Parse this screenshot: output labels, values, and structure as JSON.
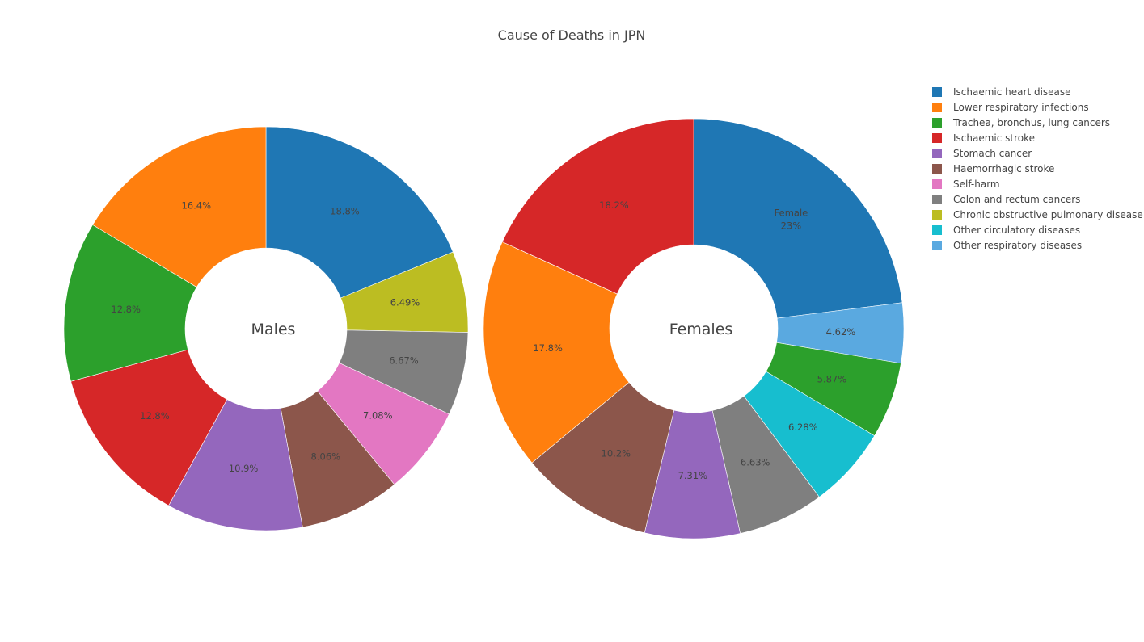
{
  "chart_data": {
    "type": "pie",
    "title": "Cause of Deaths in JPN",
    "legend_position": "top-right",
    "legend": [
      {
        "name": "Ischaemic heart disease",
        "color": "#1f77b4"
      },
      {
        "name": "Lower respiratory infections",
        "color": "#ff7f0e"
      },
      {
        "name": "Trachea, bronchus, lung cancers",
        "color": "#2ca02c"
      },
      {
        "name": "Ischaemic stroke",
        "color": "#d62728"
      },
      {
        "name": "Stomach cancer",
        "color": "#9467bd"
      },
      {
        "name": "Haemorrhagic stroke",
        "color": "#8c564b"
      },
      {
        "name": "Self-harm",
        "color": "#e377c2"
      },
      {
        "name": "Colon and rectum cancers",
        "color": "#7f7f7f"
      },
      {
        "name": "Chronic obstructive pulmonary disease",
        "color": "#bcbd22"
      },
      {
        "name": "Other circulatory diseases",
        "color": "#17becf"
      },
      {
        "name": "Other respiratory diseases",
        "color": "#5aa9e0"
      }
    ],
    "pies": [
      {
        "center_label": "Males",
        "slices": [
          {
            "name": "Ischaemic heart disease",
            "value": 18.8,
            "label": "18.8%"
          },
          {
            "name": "Chronic obstructive pulmonary disease",
            "value": 6.49,
            "label": "6.49%"
          },
          {
            "name": "Colon and rectum cancers",
            "value": 6.67,
            "label": "6.67%"
          },
          {
            "name": "Self-harm",
            "value": 7.08,
            "label": "7.08%"
          },
          {
            "name": "Haemorrhagic stroke",
            "value": 8.06,
            "label": "8.06%"
          },
          {
            "name": "Stomach cancer",
            "value": 10.9,
            "label": "10.9%"
          },
          {
            "name": "Ischaemic stroke",
            "value": 12.8,
            "label": "12.8%"
          },
          {
            "name": "Trachea, bronchus, lung cancers",
            "value": 12.8,
            "label": "12.8%"
          },
          {
            "name": "Lower respiratory infections",
            "value": 16.4,
            "label": "16.4%"
          }
        ]
      },
      {
        "center_label": "Females",
        "slices": [
          {
            "name": "Ischaemic heart disease",
            "value": 23,
            "label": "23%",
            "sublabel": "Female"
          },
          {
            "name": "Other respiratory diseases",
            "value": 4.62,
            "label": "4.62%"
          },
          {
            "name": "Trachea, bronchus, lung cancers",
            "value": 5.87,
            "label": "5.87%"
          },
          {
            "name": "Other circulatory diseases",
            "value": 6.28,
            "label": "6.28%"
          },
          {
            "name": "Colon and rectum cancers",
            "value": 6.63,
            "label": "6.63%"
          },
          {
            "name": "Stomach cancer",
            "value": 7.31,
            "label": "7.31%"
          },
          {
            "name": "Haemorrhagic stroke",
            "value": 10.2,
            "label": "10.2%"
          },
          {
            "name": "Lower respiratory infections",
            "value": 17.8,
            "label": "17.8%"
          },
          {
            "name": "Ischaemic stroke",
            "value": 18.2,
            "label": "18.2%"
          }
        ]
      }
    ]
  }
}
